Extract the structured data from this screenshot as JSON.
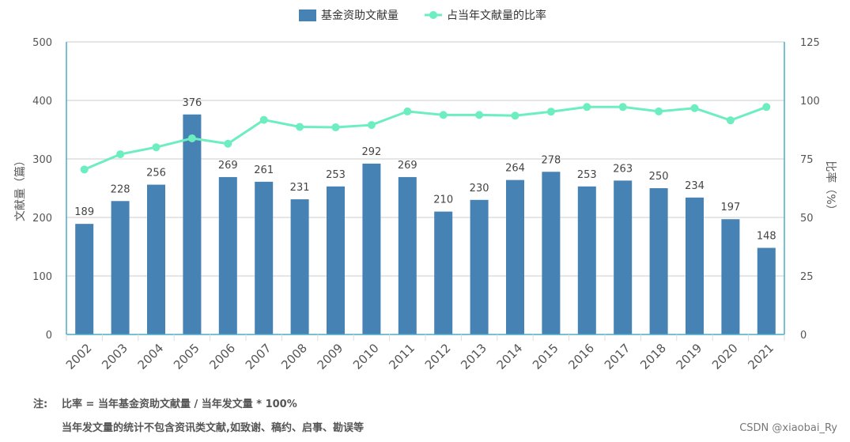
{
  "chart_data": {
    "type": "bar+line",
    "categories": [
      "2002",
      "2003",
      "2004",
      "2005",
      "2006",
      "2007",
      "2008",
      "2009",
      "2010",
      "2011",
      "2012",
      "2013",
      "2014",
      "2015",
      "2016",
      "2017",
      "2018",
      "2019",
      "2020",
      "2021"
    ],
    "series": [
      {
        "name": "基金资助文献量",
        "type": "bar",
        "axis": "left",
        "values": [
          189,
          228,
          256,
          376,
          269,
          261,
          231,
          253,
          292,
          269,
          210,
          230,
          264,
          278,
          253,
          263,
          250,
          234,
          197,
          148
        ]
      },
      {
        "name": "占当年文献量的比率",
        "type": "line",
        "axis": "right",
        "values": [
          70.5,
          77,
          80,
          83.8,
          81.5,
          91.7,
          88.7,
          88.5,
          89.5,
          95.3,
          93.8,
          93.8,
          93.5,
          95.2,
          97.2,
          97.2,
          95.3,
          96.7,
          91.5,
          97.2
        ]
      }
    ],
    "ylabel_left": "文献量（篇）",
    "ylabel_right": "比率（%）",
    "ylim_left": [
      0,
      500
    ],
    "ylim_right": [
      0,
      125
    ],
    "yticks_left": [
      "0",
      "100",
      "200",
      "300",
      "400",
      "500"
    ],
    "yticks_right": [
      "0",
      "25",
      "50",
      "75",
      "100",
      "125"
    ],
    "grid": true,
    "legend_position": "top-center",
    "colors": {
      "bar": "#4682b4",
      "line": "#6ceec0",
      "axis": "#4bacc6",
      "grid": "#dddddd"
    }
  },
  "notes": {
    "prefix": "注:",
    "line1": "比率 = 当年基金资助文献量 / 当年发文量 * 100%",
    "line2": "当年发文量的统计不包含资讯类文献,如致谢、稿约、启事、勘误等"
  },
  "watermark": "CSDN @xiaobai_Ry"
}
